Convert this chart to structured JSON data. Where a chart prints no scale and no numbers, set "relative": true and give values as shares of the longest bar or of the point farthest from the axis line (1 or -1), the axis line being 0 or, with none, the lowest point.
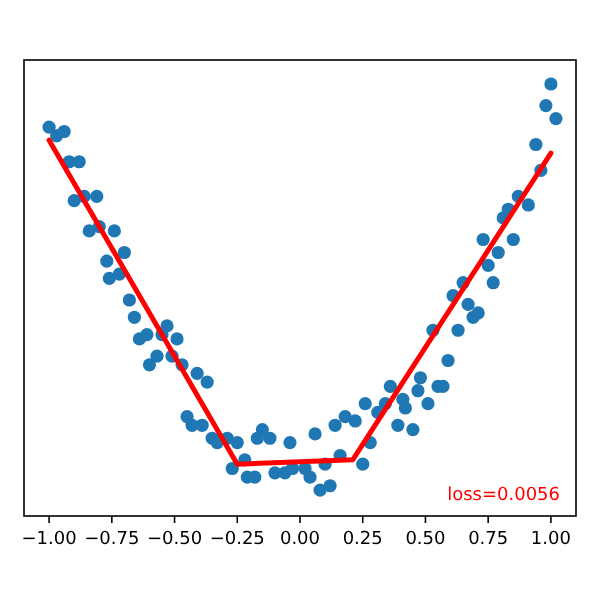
{
  "chart_data": {
    "type": "scatter",
    "relative": true,
    "grid": false,
    "tick_labels": "x",
    "xlim": [
      -1.1,
      1.1
    ],
    "xticks": [
      {
        "value": -1,
        "label": "−1.00"
      },
      {
        "value": -0.75,
        "label": "−0.75"
      },
      {
        "value": -0.5,
        "label": "−0.50"
      },
      {
        "value": -0.25,
        "label": "−0.25"
      },
      {
        "value": 0,
        "label": "0.00"
      },
      {
        "value": 0.25,
        "label": "0.25"
      },
      {
        "value": 0.5,
        "label": "0.50"
      },
      {
        "value": 0.75,
        "label": "0.75"
      },
      {
        "value": 1,
        "label": "1.00"
      }
    ],
    "series": [
      {
        "marker": "circle",
        "color": "#1f77b4",
        "x": [
          -1.0,
          -0.97,
          -0.94,
          -0.92,
          -0.88,
          -0.9,
          -0.86,
          -0.81,
          -0.84,
          -0.8,
          -0.74,
          -0.77,
          -0.7,
          -0.76,
          -0.72,
          -0.68,
          -0.66,
          -0.64,
          -0.61,
          -0.53,
          -0.55,
          -0.49,
          -0.57,
          -0.6,
          -0.51,
          -0.47,
          -0.41,
          -0.37,
          -0.45,
          -0.43,
          -0.39,
          -0.35,
          -0.33,
          -0.29,
          -0.25,
          -0.27,
          -0.22,
          -0.21,
          -0.18,
          -0.15,
          -0.12,
          -0.17,
          -0.1,
          -0.06,
          -0.04,
          -0.03,
          0.02,
          0.06,
          0.04,
          0.08,
          0.1,
          0.12,
          0.14,
          0.16,
          0.18,
          0.22,
          0.25,
          0.26,
          0.28,
          0.31,
          0.34,
          0.36,
          0.39,
          0.41,
          0.42,
          0.45,
          0.47,
          0.48,
          0.51,
          0.55,
          0.57,
          0.53,
          0.59,
          0.61,
          0.63,
          0.65,
          0.67,
          0.69,
          0.71,
          0.73,
          0.75,
          0.77,
          0.79,
          0.81,
          0.83,
          0.85,
          0.87,
          0.91,
          0.94,
          0.96,
          0.98,
          1.0,
          1.02
        ],
        "values": [
          0.9,
          0.88,
          0.89,
          0.82,
          0.82,
          0.73,
          0.74,
          0.74,
          0.66,
          0.67,
          0.66,
          0.59,
          0.61,
          0.55,
          0.56,
          0.5,
          0.46,
          0.41,
          0.42,
          0.44,
          0.42,
          0.41,
          0.37,
          0.35,
          0.37,
          0.35,
          0.33,
          0.31,
          0.23,
          0.21,
          0.21,
          0.18,
          0.17,
          0.18,
          0.17,
          0.11,
          0.13,
          0.09,
          0.09,
          0.2,
          0.18,
          0.18,
          0.1,
          0.1,
          0.17,
          0.11,
          0.11,
          0.19,
          0.09,
          0.06,
          0.12,
          0.07,
          0.21,
          0.14,
          0.23,
          0.22,
          0.12,
          0.26,
          0.17,
          0.24,
          0.26,
          0.3,
          0.21,
          0.27,
          0.25,
          0.2,
          0.29,
          0.32,
          0.26,
          0.3,
          0.3,
          0.43,
          0.36,
          0.51,
          0.43,
          0.54,
          0.49,
          0.46,
          0.47,
          0.64,
          0.58,
          0.54,
          0.61,
          0.69,
          0.71,
          0.64,
          0.74,
          0.72,
          0.86,
          0.8,
          0.95,
          1,
          0.92
        ]
      },
      {
        "type": "line",
        "marker": "none",
        "color": "#ff0000",
        "x": [
          -1.0,
          -0.25,
          0.21,
          1.0
        ],
        "values": [
          0.87,
          0.12,
          0.13,
          0.84
        ]
      }
    ],
    "annotations": [
      "loss=0.0056"
    ]
  }
}
